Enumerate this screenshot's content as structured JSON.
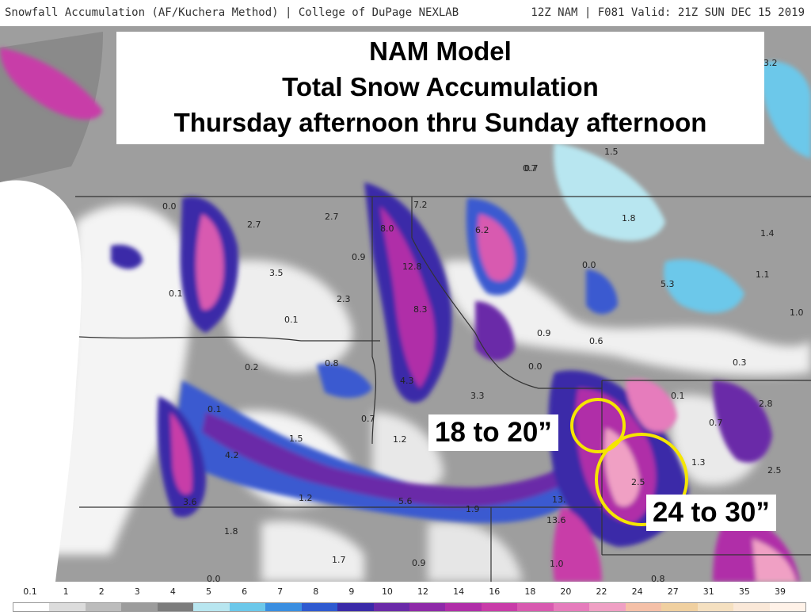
{
  "header": {
    "left": "Snowfall Accumulation (AF/Kuchera Method) | College of DuPage NEXLAB",
    "right": "12Z NAM | F081 Valid: 21Z SUN DEC 15 2019"
  },
  "title": {
    "line1": "NAM Model",
    "line2": "Total Snow Accumulation",
    "line3": "Thursday afternoon thru Sunday afternoon"
  },
  "annotations": {
    "label_a": "18 to 20”",
    "label_b": "24 to 30”",
    "circle_color": "#f5e600"
  },
  "legend": {
    "ticks": [
      "0.1",
      "1",
      "2",
      "3",
      "4",
      "5",
      "6",
      "7",
      "8",
      "9",
      "10",
      "12",
      "14",
      "16",
      "18",
      "20",
      "22",
      "24",
      "27",
      "31",
      "35",
      "39"
    ],
    "colors": [
      "#ffffff",
      "#dcdcdc",
      "#bcbcbc",
      "#9c9c9c",
      "#7c7c7c",
      "#b8e6f0",
      "#6cc8ea",
      "#3a8ee0",
      "#2e5ad0",
      "#3a2aa8",
      "#6a2aa8",
      "#8e2aa8",
      "#b02ea8",
      "#c83ca8",
      "#d85ab0",
      "#e67cbc",
      "#f0a0c4",
      "#f5c0a8",
      "#f0d0a0",
      "#f5e0c0",
      "#fae8d8",
      "#fff2e8"
    ]
  },
  "map_values": [
    {
      "t": "0.0"
    },
    {
      "t": "2.7"
    },
    {
      "t": "2.7"
    },
    {
      "t": "8.0"
    },
    {
      "t": "7.2"
    },
    {
      "t": "6.2"
    },
    {
      "t": "1.8"
    },
    {
      "t": "1.4"
    },
    {
      "t": "3.5"
    },
    {
      "t": "0.9"
    },
    {
      "t": "12.8"
    },
    {
      "t": "0.0"
    },
    {
      "t": "5.3"
    },
    {
      "t": "1.1"
    },
    {
      "t": "0.1"
    },
    {
      "t": "2.3"
    },
    {
      "t": "0.7"
    },
    {
      "t": "8.3"
    },
    {
      "t": "0.1"
    },
    {
      "t": "0.9"
    },
    {
      "t": "1.0"
    },
    {
      "t": "0.6"
    },
    {
      "t": "0.2"
    },
    {
      "t": "0.8"
    },
    {
      "t": "0.0"
    },
    {
      "t": "0.3"
    },
    {
      "t": "4.3"
    },
    {
      "t": "3.3"
    },
    {
      "t": "0.1"
    },
    {
      "t": "2.8"
    },
    {
      "t": "0.1"
    },
    {
      "t": "0.7"
    },
    {
      "t": "0.7"
    },
    {
      "t": "1.5"
    },
    {
      "t": "1.2"
    },
    {
      "t": "4.2"
    },
    {
      "t": "1.3"
    },
    {
      "t": "2.5"
    },
    {
      "t": "2.5"
    },
    {
      "t": "3.6"
    },
    {
      "t": "1.2"
    },
    {
      "t": "5.6"
    },
    {
      "t": "1.9"
    },
    {
      "t": "13."
    },
    {
      "t": "13.6"
    },
    {
      "t": "1.8"
    },
    {
      "t": "1.7"
    },
    {
      "t": "0.9"
    },
    {
      "t": "1.0"
    },
    {
      "t": "0.8"
    },
    {
      "t": "0.0"
    },
    {
      "t": "1.5"
    },
    {
      "t": "0.7"
    },
    {
      "t": "0.2"
    },
    {
      "t": "3.2"
    }
  ]
}
